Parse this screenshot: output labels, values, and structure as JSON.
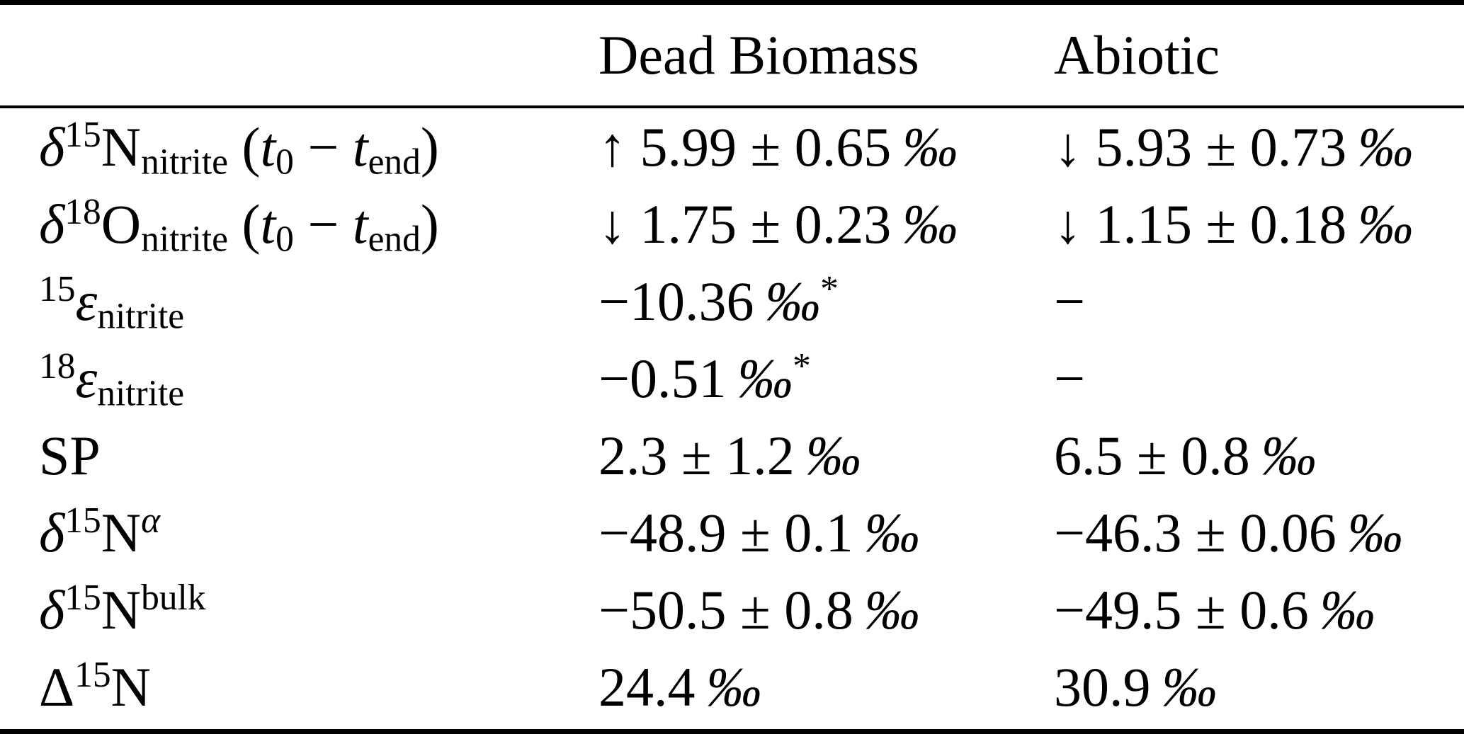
{
  "colors": {
    "text": "#000000",
    "background": "#ffffff",
    "rule": "#000000"
  },
  "table": {
    "columns": [
      "",
      "Dead Biomass",
      "Abiotic"
    ],
    "rows": [
      {
        "label": [
          {
            "t": "δ",
            "s": "i"
          },
          {
            "t": "15",
            "s": "sup"
          },
          {
            "t": "N"
          },
          {
            "t": "nitrite",
            "s": "sub"
          },
          {
            "t": " ("
          },
          {
            "t": "t",
            "s": "i"
          },
          {
            "t": "0",
            "s": "sub"
          },
          {
            "t": " − "
          },
          {
            "t": "t",
            "s": "i"
          },
          {
            "t": "end",
            "s": "sub"
          },
          {
            "t": ")"
          }
        ],
        "dead_biomass": [
          {
            "t": "↑ 5.99 ± 0.65 "
          },
          {
            "t": "‰",
            "s": "i"
          }
        ],
        "abiotic": [
          {
            "t": "↓ 5.93 ± 0.73 "
          },
          {
            "t": "‰",
            "s": "i"
          }
        ]
      },
      {
        "label": [
          {
            "t": "δ",
            "s": "i"
          },
          {
            "t": "18",
            "s": "sup"
          },
          {
            "t": "O"
          },
          {
            "t": "nitrite",
            "s": "sub"
          },
          {
            "t": " ("
          },
          {
            "t": "t",
            "s": "i"
          },
          {
            "t": "0",
            "s": "sub"
          },
          {
            "t": " − "
          },
          {
            "t": "t",
            "s": "i"
          },
          {
            "t": "end",
            "s": "sub"
          },
          {
            "t": ")"
          }
        ],
        "dead_biomass": [
          {
            "t": "↓ 1.75 ± 0.23 "
          },
          {
            "t": "‰",
            "s": "i"
          }
        ],
        "abiotic": [
          {
            "t": "↓ 1.15 ± 0.18 "
          },
          {
            "t": "‰",
            "s": "i"
          }
        ]
      },
      {
        "label": [
          {
            "t": "15",
            "s": "sup"
          },
          {
            "t": "ε",
            "s": "i"
          },
          {
            "t": "nitrite",
            "s": "sub"
          }
        ],
        "dead_biomass": [
          {
            "t": "−10.36 "
          },
          {
            "t": "‰",
            "s": "i"
          },
          {
            "t": "*",
            "s": "sup"
          }
        ],
        "abiotic": [
          {
            "t": "−"
          }
        ]
      },
      {
        "label": [
          {
            "t": "18",
            "s": "sup"
          },
          {
            "t": "ε",
            "s": "i"
          },
          {
            "t": "nitrite",
            "s": "sub"
          }
        ],
        "dead_biomass": [
          {
            "t": "−0.51 "
          },
          {
            "t": "‰",
            "s": "i"
          },
          {
            "t": "*",
            "s": "sup"
          }
        ],
        "abiotic": [
          {
            "t": "−"
          }
        ]
      },
      {
        "label": [
          {
            "t": "SP"
          }
        ],
        "dead_biomass": [
          {
            "t": "2.3 ± 1.2 "
          },
          {
            "t": "‰",
            "s": "i"
          }
        ],
        "abiotic": [
          {
            "t": "6.5 ± 0.8 "
          },
          {
            "t": "‰",
            "s": "i"
          }
        ]
      },
      {
        "label": [
          {
            "t": "δ",
            "s": "i"
          },
          {
            "t": "15",
            "s": "sup"
          },
          {
            "t": "N"
          },
          {
            "t": "α",
            "s": "sup i"
          }
        ],
        "dead_biomass": [
          {
            "t": "−48.9 ± 0.1 "
          },
          {
            "t": "‰",
            "s": "i"
          }
        ],
        "abiotic": [
          {
            "t": "−46.3 ± 0.06 "
          },
          {
            "t": "‰",
            "s": "i"
          }
        ]
      },
      {
        "label": [
          {
            "t": "δ",
            "s": "i"
          },
          {
            "t": "15",
            "s": "sup"
          },
          {
            "t": "N"
          },
          {
            "t": "bulk",
            "s": "sup"
          }
        ],
        "dead_biomass": [
          {
            "t": "−50.5 ± 0.8 "
          },
          {
            "t": "‰",
            "s": "i"
          }
        ],
        "abiotic": [
          {
            "t": "−49.5 ± 0.6 "
          },
          {
            "t": "‰",
            "s": "i"
          }
        ]
      },
      {
        "label": [
          {
            "t": "Δ"
          },
          {
            "t": "15",
            "s": "sup"
          },
          {
            "t": "N"
          }
        ],
        "dead_biomass": [
          {
            "t": "24.4 "
          },
          {
            "t": "‰",
            "s": "i"
          }
        ],
        "abiotic": [
          {
            "t": "30.9 "
          },
          {
            "t": "‰",
            "s": "i"
          }
        ]
      }
    ]
  }
}
